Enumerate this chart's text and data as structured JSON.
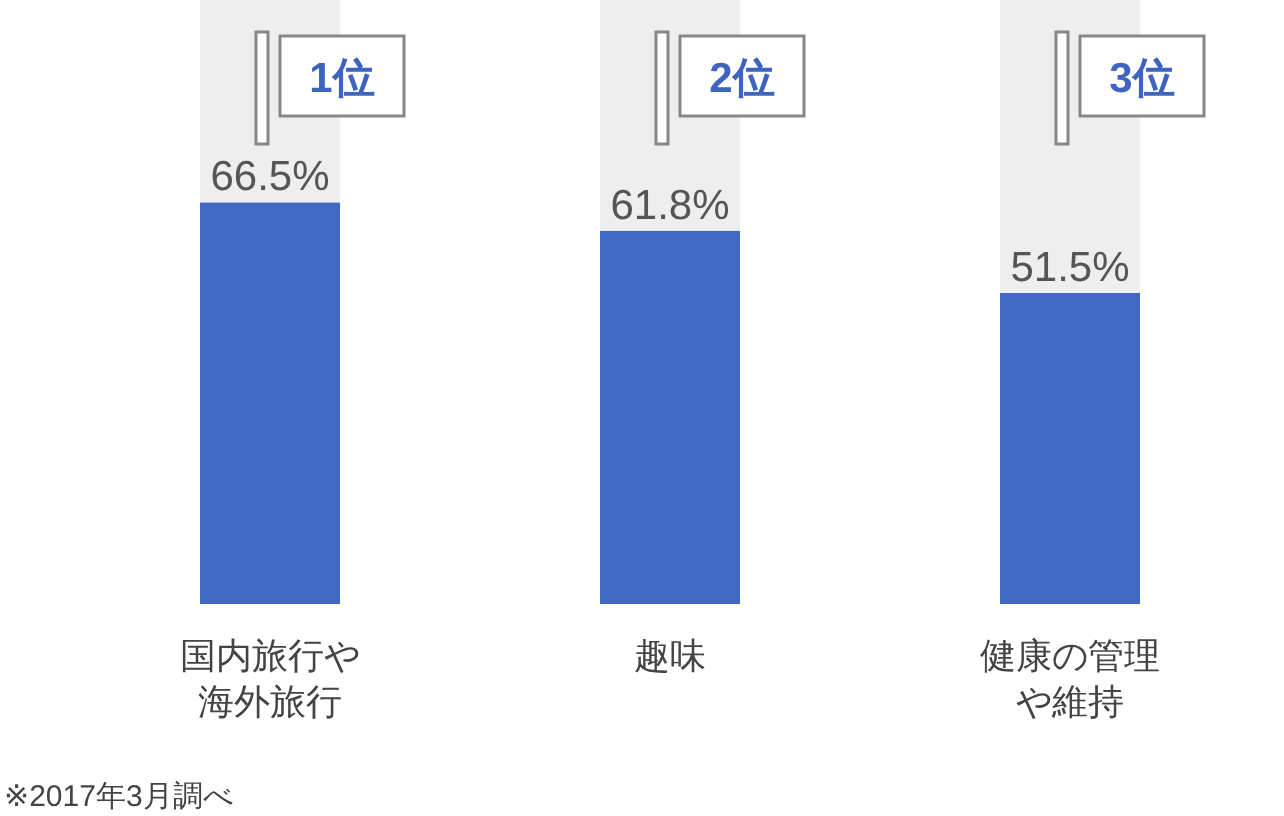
{
  "chart_data": {
    "type": "bar",
    "stacked": true,
    "categories": [
      "国内旅行や海外旅行",
      "趣味",
      "健康の管理や維持"
    ],
    "ylim": [
      0,
      100
    ],
    "series": [
      {
        "color": "#4169c4",
        "values": [
          66.5,
          61.8,
          51.5
        ],
        "value_labels": [
          "66.5%",
          "61.8%",
          "51.5%"
        ]
      },
      {
        "color": "#eeeeee",
        "values": [
          33.5,
          38.2,
          48.5
        ]
      }
    ],
    "annotations": [
      {
        "text": "1位",
        "x": "国内旅行や海外旅行",
        "y": 100
      },
      {
        "text": "2位",
        "x": "趣味",
        "y": 100
      },
      {
        "text": "3位",
        "x": "健康の管理や維持",
        "y": 100
      },
      "※2017年3月調べ"
    ]
  }
}
